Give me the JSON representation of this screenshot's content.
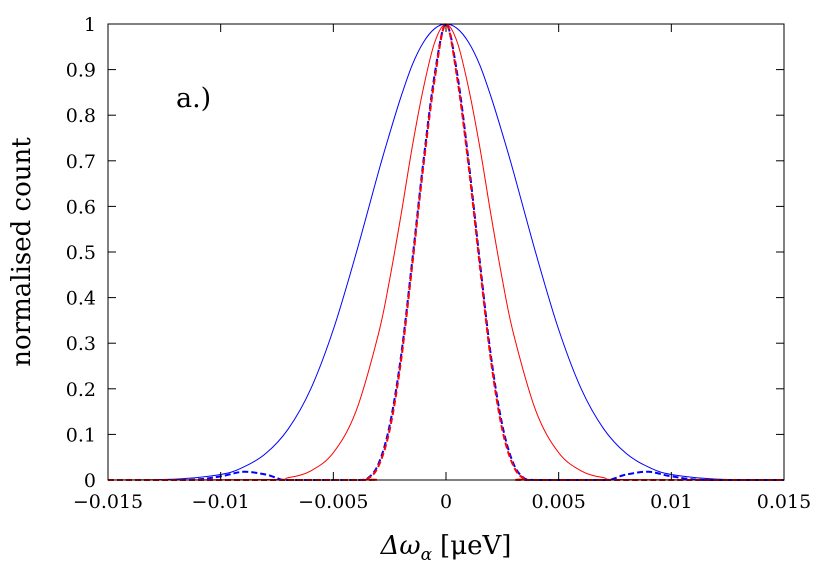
{
  "chart_data": {
    "type": "line",
    "title": "",
    "xlabel": "Δω",
    "xlabel_sub": "α",
    "xlabel_unit": "[μeV]",
    "ylabel": "normalised count",
    "annotation": "a.)",
    "xlim": [
      -0.015,
      0.015
    ],
    "ylim": [
      0,
      1
    ],
    "x_ticks": [
      "−0.015",
      "−0.01",
      "−0.005",
      "0",
      "0.005",
      "0.01",
      "0.015"
    ],
    "x_tick_values": [
      -0.015,
      -0.01,
      -0.005,
      0,
      0.005,
      0.01,
      0.015
    ],
    "y_ticks": [
      "0",
      "0.1",
      "0.2",
      "0.3",
      "0.4",
      "0.5",
      "0.6",
      "0.7",
      "0.8",
      "0.9",
      "1"
    ],
    "y_tick_values": [
      0,
      0.1,
      0.2,
      0.3,
      0.4,
      0.5,
      0.6,
      0.7,
      0.8,
      0.9,
      1
    ],
    "grid": false,
    "legend": "none",
    "series": [
      {
        "color": "#0000ff",
        "dash": "solid",
        "x": [
          -0.015,
          -0.012,
          -0.01,
          -0.009,
          -0.008,
          -0.007,
          -0.006,
          -0.005,
          -0.004,
          -0.003,
          -0.0025,
          -0.002,
          -0.0015,
          -0.001,
          -0.0005,
          0,
          0.0005,
          0.001,
          0.0015,
          0.002,
          0.0025,
          0.003,
          0.004,
          0.005,
          0.006,
          0.007,
          0.008,
          0.009,
          0.01,
          0.012,
          0.015
        ],
        "y": [
          0.0,
          0.002,
          0.012,
          0.028,
          0.058,
          0.112,
          0.2,
          0.33,
          0.495,
          0.675,
          0.76,
          0.84,
          0.91,
          0.96,
          0.99,
          1.0,
          0.99,
          0.96,
          0.91,
          0.84,
          0.76,
          0.675,
          0.495,
          0.33,
          0.2,
          0.112,
          0.058,
          0.028,
          0.012,
          0.002,
          0.0
        ]
      },
      {
        "color": "#ff0000",
        "dash": "solid",
        "x": [
          -0.015,
          -0.008,
          -0.007,
          -0.006,
          -0.005,
          -0.004,
          -0.003,
          -0.0025,
          -0.002,
          -0.0015,
          -0.001,
          -0.0005,
          0,
          0.0005,
          0.001,
          0.0015,
          0.002,
          0.0025,
          0.003,
          0.004,
          0.005,
          0.006,
          0.007,
          0.008,
          0.015
        ],
        "y": [
          0.0,
          0.001,
          0.005,
          0.02,
          0.06,
          0.15,
          0.32,
          0.44,
          0.58,
          0.73,
          0.86,
          0.96,
          1.0,
          0.96,
          0.86,
          0.73,
          0.58,
          0.44,
          0.32,
          0.15,
          0.06,
          0.02,
          0.005,
          0.001,
          0.0
        ]
      },
      {
        "color": "#0000ff",
        "dash": "dashed",
        "x": [
          -0.015,
          -0.0115,
          -0.01,
          -0.009,
          -0.008,
          -0.0075,
          -0.0072,
          -0.0065,
          -0.004,
          -0.0035,
          -0.003,
          -0.0025,
          -0.002,
          -0.0015,
          -0.001,
          -0.0005,
          0,
          0.0005,
          0.001,
          0.0015,
          0.002,
          0.0025,
          0.003,
          0.0035,
          0.004,
          0.0065,
          0.0072,
          0.0075,
          0.008,
          0.009,
          0.01,
          0.0115,
          0.015
        ],
        "y": [
          0.0,
          0.0,
          0.008,
          0.018,
          0.012,
          0.004,
          0.0,
          0.0,
          0.0,
          0.003,
          0.035,
          0.12,
          0.27,
          0.48,
          0.7,
          0.89,
          1.0,
          0.89,
          0.7,
          0.48,
          0.27,
          0.12,
          0.035,
          0.003,
          0.0,
          0.0,
          0.0,
          0.004,
          0.012,
          0.018,
          0.008,
          0.0,
          0.0
        ]
      },
      {
        "color": "#ff0000",
        "dash": "dashed",
        "x": [
          -0.015,
          -0.004,
          -0.0035,
          -0.003,
          -0.0025,
          -0.002,
          -0.0015,
          -0.001,
          -0.0005,
          0,
          0.0005,
          0.001,
          0.0015,
          0.002,
          0.0025,
          0.003,
          0.0035,
          0.004,
          0.015
        ],
        "y": [
          0.0,
          0.0,
          0.002,
          0.03,
          0.11,
          0.26,
          0.47,
          0.69,
          0.88,
          1.0,
          0.88,
          0.69,
          0.47,
          0.26,
          0.11,
          0.03,
          0.002,
          0.0,
          0.0
        ]
      }
    ]
  }
}
